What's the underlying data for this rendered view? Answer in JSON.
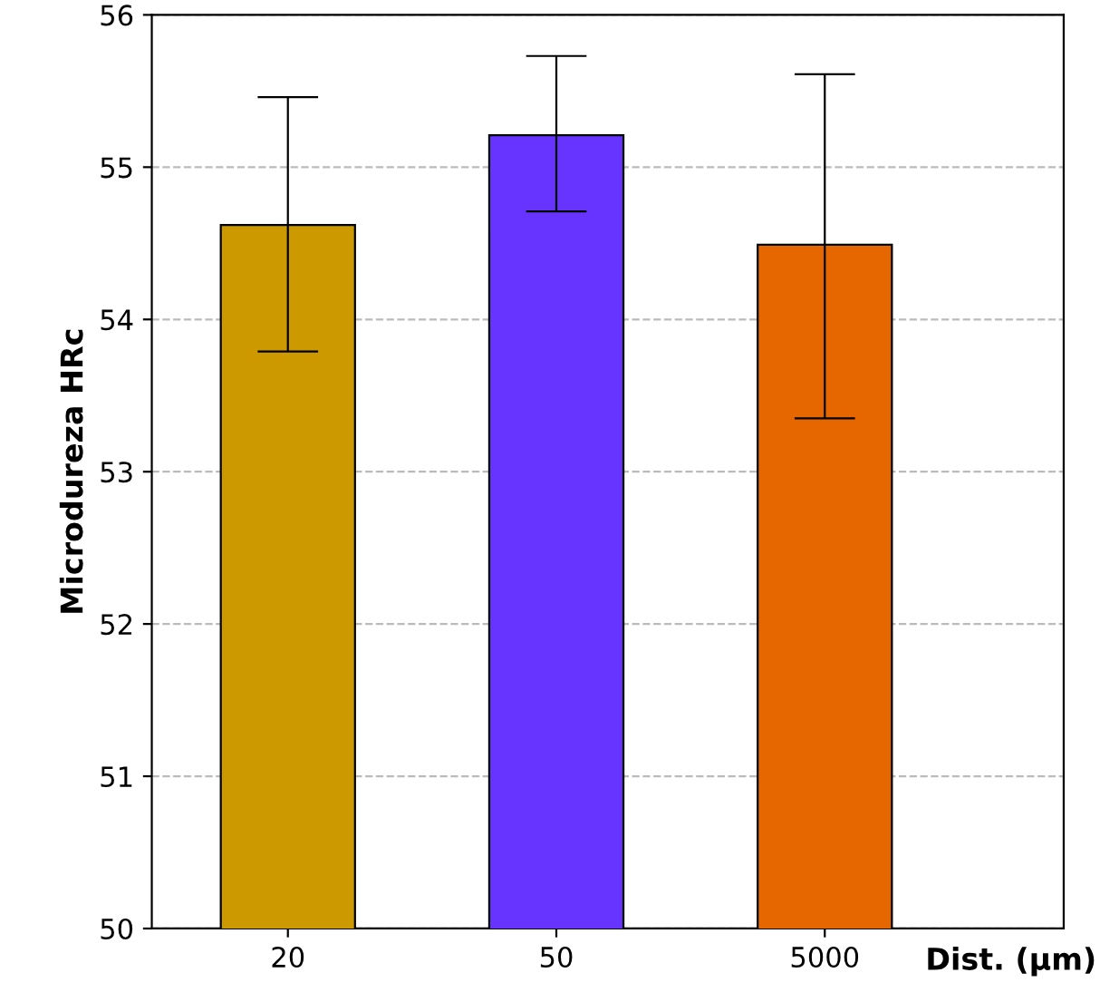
{
  "chart_data": {
    "type": "bar",
    "xlabel": "Dist. (μm)",
    "ylabel": "Microdureza HRc",
    "categories": [
      "20",
      "50",
      "5000"
    ],
    "values": [
      54.62,
      55.21,
      54.49
    ],
    "colors": [
      "#cc9900",
      "#6633ff",
      "#e66600"
    ],
    "errors": [
      [
        53.79,
        55.46
      ],
      [
        54.71,
        55.73
      ],
      [
        53.35,
        55.61
      ]
    ],
    "ylim": [
      50,
      56
    ],
    "yticks": [
      50,
      51,
      52,
      53,
      54,
      55,
      56
    ],
    "grid": "y",
    "legend": false
  }
}
